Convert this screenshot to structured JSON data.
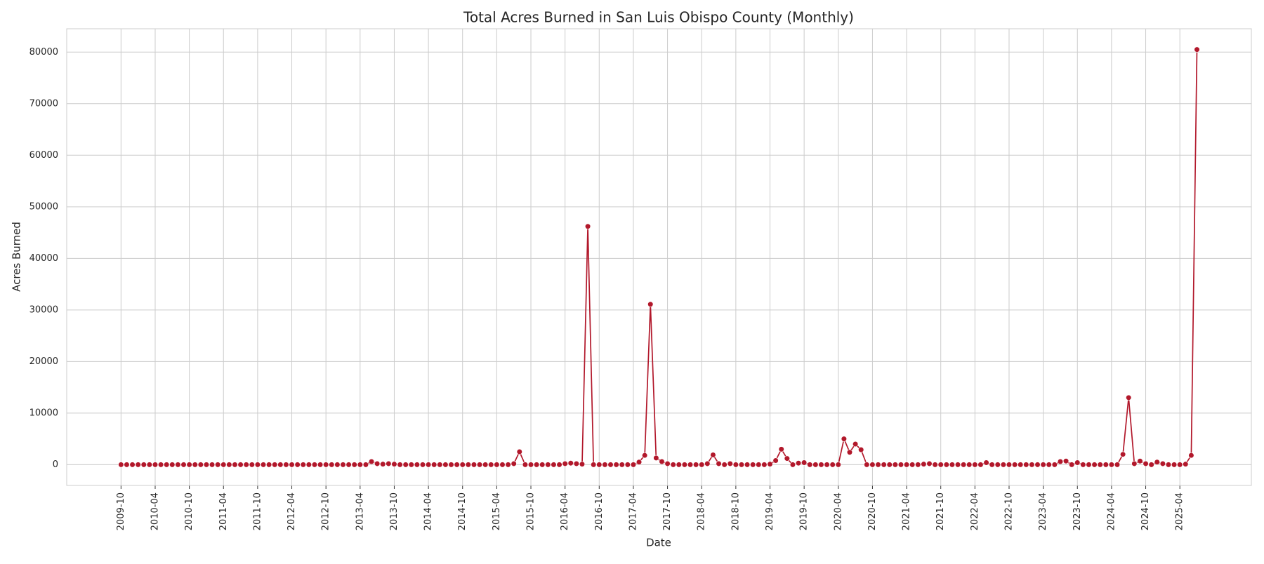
{
  "chart_data": {
    "type": "line",
    "title": "Total Acres Burned in San Luis Obispo County (Monthly)",
    "xlabel": "Date",
    "ylabel": "Acres Burned",
    "color": "#b2182b",
    "grid": true,
    "x": [
      "2009-10",
      "2009-11",
      "2009-12",
      "2010-01",
      "2010-02",
      "2010-03",
      "2010-04",
      "2010-05",
      "2010-06",
      "2010-07",
      "2010-08",
      "2010-09",
      "2010-10",
      "2010-11",
      "2010-12",
      "2011-01",
      "2011-02",
      "2011-03",
      "2011-04",
      "2011-05",
      "2011-06",
      "2011-07",
      "2011-08",
      "2011-09",
      "2011-10",
      "2011-11",
      "2011-12",
      "2012-01",
      "2012-02",
      "2012-03",
      "2012-04",
      "2012-05",
      "2012-06",
      "2012-07",
      "2012-08",
      "2012-09",
      "2012-10",
      "2012-11",
      "2012-12",
      "2013-01",
      "2013-02",
      "2013-03",
      "2013-04",
      "2013-05",
      "2013-06",
      "2013-07",
      "2013-08",
      "2013-09",
      "2013-10",
      "2013-11",
      "2013-12",
      "2014-01",
      "2014-02",
      "2014-03",
      "2014-04",
      "2014-05",
      "2014-06",
      "2014-07",
      "2014-08",
      "2014-09",
      "2014-10",
      "2014-11",
      "2014-12",
      "2015-01",
      "2015-02",
      "2015-03",
      "2015-04",
      "2015-05",
      "2015-06",
      "2015-07",
      "2015-08",
      "2015-09",
      "2015-10",
      "2015-11",
      "2015-12",
      "2016-01",
      "2016-02",
      "2016-03",
      "2016-04",
      "2016-05",
      "2016-06",
      "2016-07",
      "2016-08",
      "2016-09",
      "2016-10",
      "2016-11",
      "2016-12",
      "2017-01",
      "2017-02",
      "2017-03",
      "2017-04",
      "2017-05",
      "2017-06",
      "2017-07",
      "2017-08",
      "2017-09",
      "2017-10",
      "2017-11",
      "2017-12",
      "2018-01",
      "2018-02",
      "2018-03",
      "2018-04",
      "2018-05",
      "2018-06",
      "2018-07",
      "2018-08",
      "2018-09",
      "2018-10",
      "2018-11",
      "2018-12",
      "2019-01",
      "2019-02",
      "2019-03",
      "2019-04",
      "2019-05",
      "2019-06",
      "2019-07",
      "2019-08",
      "2019-09",
      "2019-10",
      "2019-11",
      "2019-12",
      "2020-01",
      "2020-02",
      "2020-03",
      "2020-04",
      "2020-05",
      "2020-06",
      "2020-07",
      "2020-08",
      "2020-09",
      "2020-10",
      "2020-11",
      "2020-12",
      "2021-01",
      "2021-02",
      "2021-03",
      "2021-04",
      "2021-05",
      "2021-06",
      "2021-07",
      "2021-08",
      "2021-09",
      "2021-10",
      "2021-11",
      "2021-12",
      "2022-01",
      "2022-02",
      "2022-03",
      "2022-04",
      "2022-05",
      "2022-06",
      "2022-07",
      "2022-08",
      "2022-09",
      "2022-10",
      "2022-11",
      "2022-12",
      "2023-01",
      "2023-02",
      "2023-03",
      "2023-04",
      "2023-05",
      "2023-06",
      "2023-07",
      "2023-08",
      "2023-09",
      "2023-10",
      "2023-11",
      "2023-12",
      "2024-01",
      "2024-02",
      "2024-03",
      "2024-04",
      "2024-05",
      "2024-06",
      "2024-07",
      "2024-08",
      "2024-09",
      "2024-10",
      "2024-11",
      "2024-12",
      "2025-01",
      "2025-02",
      "2025-03",
      "2025-04",
      "2025-05",
      "2025-06",
      "2025-07"
    ],
    "values": [
      0,
      0,
      0,
      0,
      0,
      0,
      0,
      0,
      0,
      0,
      0,
      0,
      0,
      0,
      0,
      0,
      0,
      0,
      0,
      0,
      0,
      0,
      0,
      0,
      0,
      0,
      0,
      0,
      0,
      0,
      0,
      0,
      0,
      0,
      0,
      0,
      0,
      0,
      0,
      0,
      0,
      0,
      0,
      0,
      600,
      200,
      100,
      200,
      100,
      0,
      0,
      0,
      0,
      0,
      0,
      0,
      0,
      0,
      0,
      0,
      0,
      0,
      0,
      0,
      0,
      0,
      0,
      0,
      0,
      200,
      2500,
      0,
      0,
      0,
      0,
      0,
      0,
      0,
      200,
      300,
      200,
      100,
      46200,
      0,
      0,
      0,
      0,
      0,
      0,
      0,
      0,
      500,
      1800,
      31100,
      1300,
      600,
      200,
      0,
      0,
      0,
      0,
      0,
      0,
      200,
      1900,
      200,
      0,
      200,
      0,
      0,
      0,
      0,
      0,
      0,
      100,
      800,
      3000,
      1200,
      0,
      300,
      400,
      0,
      0,
      0,
      0,
      0,
      0,
      5000,
      2400,
      4000,
      2900,
      0,
      0,
      0,
      0,
      0,
      0,
      0,
      0,
      0,
      0,
      100,
      200,
      0,
      0,
      0,
      0,
      0,
      0,
      0,
      0,
      0,
      400,
      0,
      0,
      0,
      0,
      0,
      0,
      0,
      0,
      0,
      0,
      0,
      0,
      600,
      700,
      0,
      400,
      0,
      0,
      0,
      0,
      0,
      0,
      0,
      2000,
      13000,
      200,
      700,
      200,
      0,
      500,
      200,
      0,
      0,
      0,
      100,
      1800,
      80500
    ],
    "xlim": [
      "2008-12-15",
      "2026-04-18"
    ],
    "xticks": [
      "2009-10",
      "2010-04",
      "2010-10",
      "2011-04",
      "2011-10",
      "2012-04",
      "2012-10",
      "2013-04",
      "2013-10",
      "2014-04",
      "2014-10",
      "2015-04",
      "2015-10",
      "2016-04",
      "2016-10",
      "2017-04",
      "2017-10",
      "2018-04",
      "2018-10",
      "2019-04",
      "2019-10",
      "2020-04",
      "2020-10",
      "2021-04",
      "2021-10",
      "2022-04",
      "2022-10",
      "2023-04",
      "2023-10",
      "2024-04",
      "2024-10",
      "2025-04"
    ],
    "ylim": [
      -4025,
      84525
    ],
    "yticks": [
      0,
      10000,
      20000,
      30000,
      40000,
      50000,
      60000,
      70000,
      80000
    ]
  }
}
